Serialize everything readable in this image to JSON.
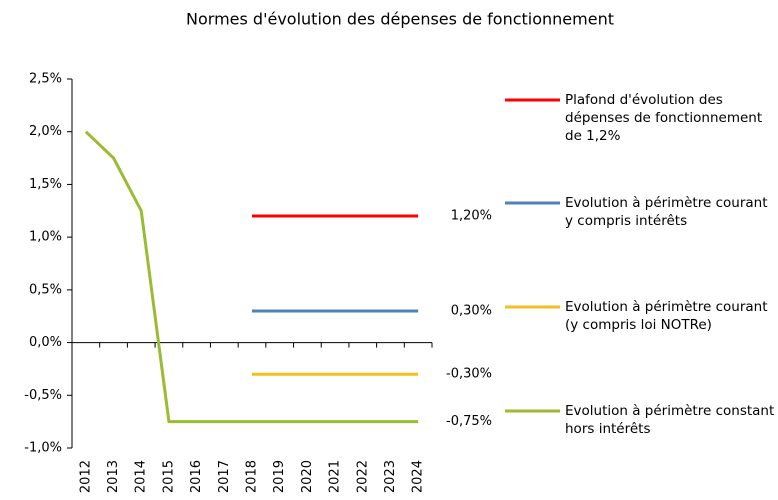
{
  "chart_data": {
    "type": "line",
    "title": "Normes d'évolution des dépenses de fonctionnement",
    "categories": [
      "2012",
      "2013",
      "2014",
      "2015",
      "2016",
      "2017",
      "2018",
      "2019",
      "2020",
      "2021",
      "2022",
      "2023",
      "2024"
    ],
    "series": [
      {
        "name": "Plafond d'évolution des dépenses de fonctionnement de 1,2%",
        "color": "#ff0000",
        "values": [
          null,
          null,
          null,
          null,
          null,
          null,
          1.2,
          1.2,
          1.2,
          1.2,
          1.2,
          1.2,
          1.2
        ],
        "value_labels": [
          null,
          null,
          null,
          null,
          null,
          null,
          null,
          null,
          null,
          null,
          null,
          null,
          "1,20%"
        ]
      },
      {
        "name": "Evolution à périmètre courant y compris intérêts",
        "color": "#4f81bd",
        "values": [
          null,
          null,
          null,
          null,
          null,
          null,
          0.3,
          0.3,
          0.3,
          0.3,
          0.3,
          0.3,
          0.3
        ],
        "value_labels": [
          null,
          null,
          null,
          null,
          null,
          null,
          null,
          null,
          null,
          null,
          null,
          null,
          "0,30%"
        ]
      },
      {
        "name": "Evolution à périmètre courant (y compris loi NOTRe)",
        "color": "#f5bd1f",
        "values": [
          null,
          null,
          null,
          null,
          null,
          null,
          -0.3,
          -0.3,
          -0.3,
          -0.3,
          -0.3,
          -0.3,
          -0.3
        ],
        "value_labels": [
          null,
          null,
          null,
          null,
          null,
          null,
          null,
          null,
          null,
          null,
          null,
          null,
          "-0,30%"
        ]
      },
      {
        "name": "Evolution à périmètre constant hors intérêts",
        "color": "#9bbb33",
        "values": [
          2.0,
          1.75,
          1.25,
          -0.75,
          -0.75,
          -0.75,
          -0.75,
          -0.75,
          -0.75,
          -0.75,
          -0.75,
          -0.75,
          -0.75
        ],
        "value_labels": [
          null,
          null,
          null,
          null,
          null,
          null,
          null,
          null,
          null,
          null,
          null,
          null,
          "-0,75%"
        ]
      }
    ],
    "ylim": [
      -1.0,
      2.5
    ],
    "yticks": [
      {
        "value": -1.0,
        "label": "-1,0%"
      },
      {
        "value": -0.5,
        "label": "-0,5%"
      },
      {
        "value": 0,
        "label": "0,0%"
      },
      {
        "value": 0.5,
        "label": "0,5%"
      },
      {
        "value": 1.0,
        "label": "1,0%"
      },
      {
        "value": 1.5,
        "label": "1,5%"
      },
      {
        "value": 2.0,
        "label": "2,0%"
      },
      {
        "value": 2.5,
        "label": "2,5%"
      }
    ],
    "legend": "right",
    "grid": false
  }
}
